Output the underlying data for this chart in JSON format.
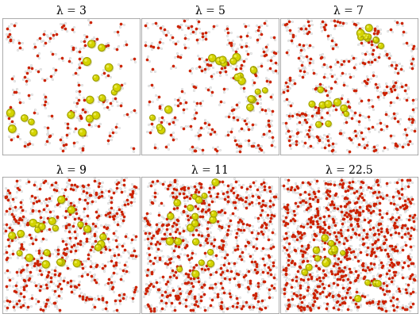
{
  "labels": [
    "λ = 3",
    "λ = 5",
    "λ = 7",
    "λ = 9",
    "λ = 11",
    "λ = 22.5"
  ],
  "nrows": 2,
  "ncols": 3,
  "figsize": [
    5.29,
    4.15
  ],
  "dpi": 100,
  "label_fontsize": 10,
  "label_color": "black",
  "background_color": "white",
  "panel_bg": "white",
  "yellow_color": "#D4D400",
  "yellow_edge": "#a0a000",
  "yellow_highlight": "#f0f060",
  "red_color": "#CC2200",
  "white_atom_color": "#F0F0F0",
  "white_atom_edge": "#999999",
  "border_color": "#888888",
  "border_linewidth": 0.5,
  "n_yellow": [
    18,
    20,
    18,
    22,
    20,
    16
  ],
  "n_water": [
    120,
    180,
    250,
    380,
    480,
    650
  ],
  "seeds": [
    10,
    20,
    30,
    40,
    50,
    60
  ],
  "yellow_size_base": [
    38,
    36,
    35,
    34,
    32,
    30
  ],
  "water_o_size": [
    7,
    7,
    7,
    7,
    7,
    7
  ],
  "water_h_size": [
    3,
    3,
    3,
    3,
    3,
    3
  ]
}
